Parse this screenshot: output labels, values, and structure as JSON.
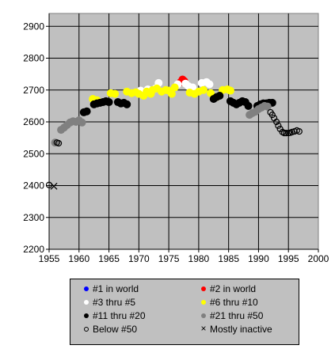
{
  "chart_data": {
    "type": "scatter",
    "title": "",
    "xlabel": "",
    "ylabel": "",
    "xlim": [
      1955,
      2000
    ],
    "ylim": [
      2200,
      2950
    ],
    "xticks": [
      "1955",
      "1960",
      "1965",
      "1970",
      "1975",
      "1980",
      "1985",
      "1990",
      "1995",
      "2000"
    ],
    "yticks": [
      "2200",
      "2300",
      "2400",
      "2500",
      "2600",
      "2700",
      "2800",
      "2900"
    ],
    "grid": true,
    "legend_position": "bottom",
    "series": [
      {
        "name": "#1 in world",
        "color": "#0000ff",
        "marker": "dot",
        "x": [],
        "y": []
      },
      {
        "name": "#2 in world",
        "color": "#ff0000",
        "marker": "dot",
        "x": [
          1977.0,
          1977.3,
          1977.6
        ],
        "y": [
          2725,
          2733,
          2728
        ]
      },
      {
        "name": "#3 thru #5",
        "color": "#ffffff",
        "marker": "dot",
        "x": [
          1970.3,
          1971.5,
          1972.8,
          1973.3,
          1976.5,
          1977.8,
          1978.3,
          1979.0,
          1980.5,
          1981.3,
          1981.8
        ],
        "y": [
          2698,
          2702,
          2705,
          2722,
          2718,
          2720,
          2712,
          2708,
          2722,
          2725,
          2718
        ]
      },
      {
        "name": "#6 thru #10",
        "color": "#ffff00",
        "marker": "dot",
        "x": [
          1962.3,
          1963.0,
          1965.3,
          1966.0,
          1968.0,
          1968.8,
          1969.5,
          1970.0,
          1970.8,
          1971.3,
          1972.0,
          1972.3,
          1973.0,
          1973.8,
          1974.5,
          1975.0,
          1975.5,
          1976.0,
          1978.5,
          1979.3,
          1980.0,
          1980.8,
          1982.0,
          1983.0,
          1984.0,
          1984.8,
          1985.3
        ],
        "y": [
          2672,
          2668,
          2690,
          2688,
          2695,
          2690,
          2693,
          2688,
          2682,
          2695,
          2688,
          2700,
          2705,
          2695,
          2700,
          2698,
          2688,
          2708,
          2692,
          2688,
          2695,
          2700,
          2690,
          2678,
          2700,
          2702,
          2698
        ]
      },
      {
        "name": "#11 thru #20",
        "color": "#000000",
        "marker": "dot",
        "x": [
          1960.8,
          1961.3,
          1962.5,
          1963.0,
          1963.5,
          1964.0,
          1964.5,
          1965.0,
          1966.5,
          1967.0,
          1967.5,
          1968.0,
          1982.5,
          1983.0,
          1983.5,
          1985.3,
          1985.8,
          1986.3,
          1986.8,
          1987.3,
          1987.8,
          1988.3,
          1989.8,
          1990.3,
          1990.8,
          1991.3,
          1991.8,
          1992.3
        ],
        "y": [
          2630,
          2633,
          2655,
          2658,
          2660,
          2662,
          2665,
          2662,
          2662,
          2658,
          2660,
          2655,
          2672,
          2678,
          2682,
          2665,
          2660,
          2655,
          2660,
          2665,
          2662,
          2650,
          2650,
          2655,
          2658,
          2658,
          2660,
          2660
        ]
      },
      {
        "name": "#21 thru #50",
        "color": "#808080",
        "marker": "dot",
        "x": [
          1956.0,
          1957.0,
          1957.5,
          1958.0,
          1958.5,
          1959.0,
          1959.5,
          1960.0,
          1960.5,
          1988.5,
          1989.0,
          1989.5,
          1990.0,
          1990.5,
          1991.0,
          1991.5
        ],
        "y": [
          2535,
          2575,
          2582,
          2590,
          2598,
          2602,
          2600,
          2605,
          2598,
          2622,
          2628,
          2632,
          2640,
          2645,
          2650,
          2648
        ]
      },
      {
        "name": "Below #50",
        "color": "#000000",
        "marker": "ring",
        "x": [
          1955.0,
          1956.3,
          1956.6,
          1992.0,
          1992.3,
          1992.6,
          1993.0,
          1993.3,
          1993.6,
          1994.0,
          1994.3,
          1994.6,
          1995.0,
          1995.3,
          1995.6,
          1996.0,
          1996.4,
          1996.8
        ],
        "y": [
          2402,
          2535,
          2533,
          2630,
          2622,
          2612,
          2600,
          2588,
          2578,
          2568,
          2565,
          2565,
          2565,
          2566,
          2568,
          2570,
          2573,
          2570
        ]
      },
      {
        "name": "Mostly inactive",
        "color": "#000000",
        "marker": "x",
        "x": [
          1955.8
        ],
        "y": [
          2398
        ]
      }
    ]
  }
}
